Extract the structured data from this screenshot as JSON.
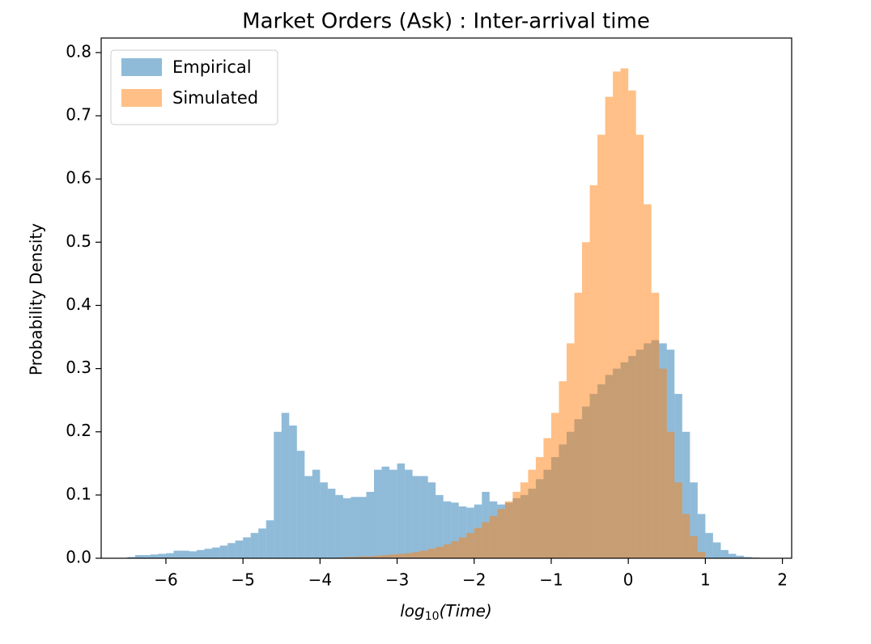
{
  "chart_data": {
    "type": "histogram",
    "title": "Market Orders (Ask) : Inter-arrival time",
    "xlabel": [
      "log",
      "10",
      "(Time)"
    ],
    "ylabel": "Probability Density",
    "xlim": [
      -6.84,
      2.12
    ],
    "ylim": [
      0,
      0.823
    ],
    "xticks": [
      {
        "value": -6,
        "label": "−6"
      },
      {
        "value": -5,
        "label": "−5"
      },
      {
        "value": -4,
        "label": "−4"
      },
      {
        "value": -3,
        "label": "−3"
      },
      {
        "value": -2,
        "label": "−2"
      },
      {
        "value": -1,
        "label": "−1"
      },
      0,
      1,
      2
    ],
    "yticks": [
      {
        "value": 0,
        "label": "0.0"
      },
      0.1,
      0.2,
      0.3,
      0.4,
      0.5,
      0.6,
      0.7,
      0.8
    ],
    "grid": false,
    "legend": "upper left",
    "alpha": 0.5,
    "series": [
      {
        "name": "Empirical",
        "color": "#1f77b4",
        "bins": [
          -6.5,
          -6.4,
          -6.3,
          -6.2,
          -6.1,
          -6.0,
          -5.9,
          -5.8,
          -5.7,
          -5.6,
          -5.5,
          -5.4,
          -5.3,
          -5.2,
          -5.1,
          -5.0,
          -4.9,
          -4.8,
          -4.7,
          -4.6,
          -4.5,
          -4.4,
          -4.3,
          -4.2,
          -4.1,
          -4.0,
          -3.9,
          -3.8,
          -3.7,
          -3.6,
          -3.5,
          -3.4,
          -3.3,
          -3.2,
          -3.1,
          -3.0,
          -2.9,
          -2.8,
          -2.7,
          -2.6,
          -2.5,
          -2.4,
          -2.3,
          -2.2,
          -2.1,
          -2.0,
          -1.9,
          -1.8,
          -1.7,
          -1.6,
          -1.5,
          -1.4,
          -1.3,
          -1.2,
          -1.1,
          -1.0,
          -0.9,
          -0.8,
          -0.7,
          -0.6,
          -0.5,
          -0.4,
          -0.3,
          -0.2,
          -0.1,
          0.0,
          0.1,
          0.2,
          0.3,
          0.4,
          0.5,
          0.6,
          0.7,
          0.8,
          0.9,
          1.0,
          1.1,
          1.2,
          1.3,
          1.4,
          1.5,
          1.6,
          1.7
        ],
        "values": [
          0.002,
          0.005,
          0.005,
          0.006,
          0.007,
          0.008,
          0.012,
          0.012,
          0.011,
          0.013,
          0.015,
          0.017,
          0.02,
          0.024,
          0.028,
          0.033,
          0.04,
          0.047,
          0.06,
          0.2,
          0.23,
          0.21,
          0.17,
          0.13,
          0.14,
          0.12,
          0.11,
          0.1,
          0.095,
          0.097,
          0.097,
          0.105,
          0.14,
          0.145,
          0.14,
          0.15,
          0.14,
          0.13,
          0.13,
          0.12,
          0.1,
          0.09,
          0.088,
          0.082,
          0.08,
          0.085,
          0.105,
          0.09,
          0.085,
          0.088,
          0.095,
          0.1,
          0.11,
          0.125,
          0.14,
          0.16,
          0.18,
          0.2,
          0.22,
          0.24,
          0.26,
          0.275,
          0.29,
          0.3,
          0.31,
          0.32,
          0.33,
          0.34,
          0.345,
          0.34,
          0.33,
          0.26,
          0.2,
          0.12,
          0.07,
          0.04,
          0.025,
          0.013,
          0.007,
          0.004,
          0.002,
          0.001
        ]
      },
      {
        "name": "Simulated",
        "color": "#ff7f0e",
        "bins": [
          -3.8,
          -3.7,
          -3.6,
          -3.5,
          -3.4,
          -3.3,
          -3.2,
          -3.1,
          -3.0,
          -2.9,
          -2.8,
          -2.7,
          -2.6,
          -2.5,
          -2.4,
          -2.3,
          -2.2,
          -2.1,
          -2.0,
          -1.9,
          -1.8,
          -1.7,
          -1.6,
          -1.5,
          -1.4,
          -1.3,
          -1.2,
          -1.1,
          -1.0,
          -0.9,
          -0.8,
          -0.7,
          -0.6,
          -0.5,
          -0.4,
          -0.3,
          -0.2,
          -0.1,
          0.0,
          0.1,
          0.2,
          0.3,
          0.4,
          0.5,
          0.6,
          0.7,
          0.8,
          0.9,
          1.0
        ],
        "values": [
          0.001,
          0.002,
          0.002,
          0.003,
          0.003,
          0.004,
          0.005,
          0.006,
          0.007,
          0.008,
          0.01,
          0.012,
          0.015,
          0.018,
          0.022,
          0.027,
          0.033,
          0.04,
          0.048,
          0.057,
          0.067,
          0.078,
          0.09,
          0.105,
          0.12,
          0.14,
          0.16,
          0.19,
          0.23,
          0.28,
          0.34,
          0.42,
          0.5,
          0.59,
          0.67,
          0.73,
          0.77,
          0.775,
          0.74,
          0.67,
          0.56,
          0.42,
          0.3,
          0.2,
          0.12,
          0.07,
          0.035,
          0.01
        ]
      }
    ]
  }
}
